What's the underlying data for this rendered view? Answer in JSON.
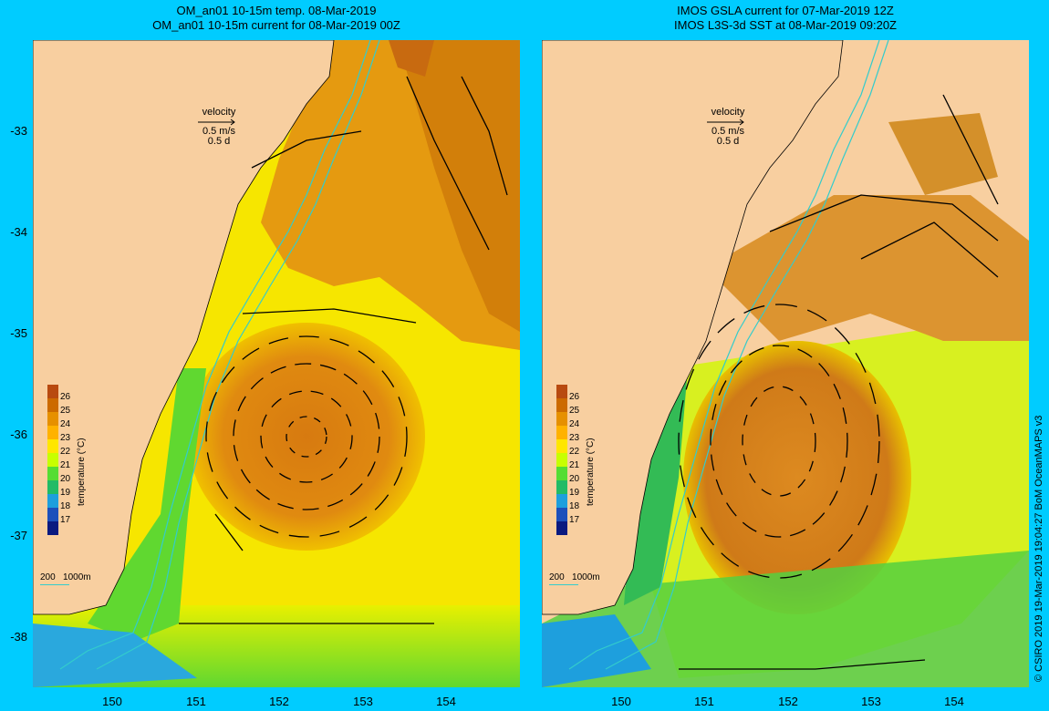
{
  "left_panel": {
    "title_line1": "OM_an01 10-15m temp. 08-Mar-2019",
    "title_line2": "OM_an01 10-15m current for 08-Mar-2019 00Z"
  },
  "right_panel": {
    "title_line1": "IMOS GSLA current for 07-Mar-2019 12Z",
    "title_line2": "IMOS L3S-3d SST at 08-Mar-2019 09:20Z"
  },
  "y_ticks": [
    "-33",
    "-34",
    "-35",
    "-36",
    "-37",
    "-38"
  ],
  "x_ticks": [
    "150",
    "151",
    "152",
    "153",
    "154"
  ],
  "velocity_legend": {
    "label": "velocity",
    "speed": "0.5 m/s",
    "time": "0.5 d"
  },
  "colorbar": {
    "title": "temperature (°C)",
    "labels": [
      "26",
      "25",
      "24",
      "23",
      "22",
      "21",
      "20",
      "19",
      "18",
      "17"
    ],
    "colors": [
      "#b84a10",
      "#cc6a00",
      "#e69000",
      "#ffb200",
      "#ffe600",
      "#c8ff00",
      "#55dd33",
      "#22bb66",
      "#1e9fdd",
      "#1d50bb",
      "#0a1a80"
    ]
  },
  "isobath_legend": "200   1000m",
  "credit": "© CSIRO 2019   19-Mar-2019 19:04:27 BoM OceanMAPS v3"
}
